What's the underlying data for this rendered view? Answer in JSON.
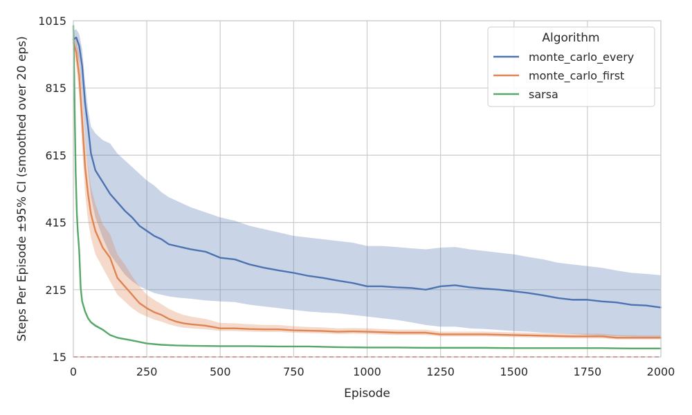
{
  "chart_data": {
    "type": "line",
    "title": "",
    "xlabel": "Episode",
    "ylabel": "Steps Per Episode ±95% CI (smoothed over 20 eps)",
    "xlim": [
      0,
      2000
    ],
    "ylim": [
      15,
      1015
    ],
    "xticks": [
      0,
      250,
      500,
      750,
      1000,
      1250,
      1500,
      1750,
      2000
    ],
    "yticks": [
      15,
      215,
      415,
      615,
      815,
      1015
    ],
    "grid": true,
    "legend": {
      "title": "Algorithm",
      "position": "top-right"
    },
    "reference_line": {
      "y": 15,
      "color": "#e6201f",
      "style": "dashed"
    },
    "series": [
      {
        "name": "monte_carlo_every",
        "color": "#4c72b0",
        "x": [
          0,
          10,
          20,
          30,
          40,
          50,
          60,
          75,
          100,
          125,
          150,
          175,
          200,
          225,
          250,
          275,
          300,
          325,
          350,
          375,
          400,
          450,
          500,
          550,
          600,
          650,
          700,
          750,
          800,
          850,
          900,
          950,
          1000,
          1050,
          1100,
          1150,
          1200,
          1250,
          1300,
          1350,
          1400,
          1450,
          1500,
          1550,
          1600,
          1650,
          1700,
          1750,
          1800,
          1850,
          1900,
          1950,
          2000
        ],
        "y": [
          960,
          965,
          940,
          880,
          770,
          700,
          620,
          570,
          535,
          500,
          475,
          450,
          430,
          405,
          390,
          375,
          365,
          350,
          345,
          340,
          335,
          328,
          310,
          305,
          290,
          280,
          272,
          265,
          256,
          250,
          242,
          235,
          225,
          225,
          222,
          220,
          215,
          225,
          228,
          222,
          218,
          215,
          210,
          205,
          198,
          190,
          185,
          185,
          180,
          177,
          170,
          168,
          162
        ],
        "lower": [
          940,
          930,
          890,
          800,
          660,
          570,
          490,
          430,
          370,
          320,
          290,
          260,
          240,
          225,
          215,
          205,
          200,
          195,
          192,
          190,
          188,
          183,
          180,
          178,
          170,
          165,
          160,
          155,
          150,
          147,
          145,
          140,
          135,
          130,
          125,
          118,
          110,
          105,
          105,
          100,
          98,
          95,
          92,
          90,
          87,
          85,
          83,
          80,
          78,
          76,
          75,
          74,
          72
        ],
        "upper": [
          985,
          990,
          975,
          930,
          830,
          750,
          700,
          680,
          660,
          650,
          620,
          600,
          580,
          560,
          540,
          525,
          505,
          490,
          480,
          470,
          460,
          445,
          430,
          420,
          405,
          395,
          385,
          375,
          370,
          365,
          360,
          355,
          345,
          345,
          342,
          338,
          335,
          340,
          342,
          335,
          330,
          325,
          320,
          312,
          305,
          295,
          290,
          285,
          280,
          272,
          265,
          262,
          258
        ]
      },
      {
        "name": "monte_carlo_first",
        "color": "#dd8452",
        "x": [
          0,
          10,
          20,
          30,
          40,
          50,
          60,
          75,
          100,
          125,
          150,
          175,
          200,
          225,
          250,
          275,
          300,
          325,
          350,
          375,
          400,
          450,
          500,
          550,
          600,
          650,
          700,
          750,
          800,
          850,
          900,
          950,
          1000,
          1100,
          1200,
          1250,
          1300,
          1400,
          1500,
          1600,
          1700,
          1800,
          1850,
          1900,
          1950,
          2000
        ],
        "y": [
          950,
          920,
          850,
          720,
          580,
          500,
          440,
          390,
          340,
          310,
          250,
          225,
          200,
          175,
          160,
          148,
          140,
          128,
          120,
          115,
          112,
          108,
          100,
          100,
          98,
          97,
          97,
          94,
          93,
          92,
          90,
          91,
          90,
          87,
          87,
          82,
          82,
          82,
          80,
          78,
          76,
          76,
          72,
          72,
          72,
          72
        ],
        "lower": [
          930,
          880,
          790,
          640,
          500,
          420,
          370,
          320,
          280,
          240,
          200,
          180,
          160,
          145,
          135,
          126,
          120,
          112,
          106,
          102,
          100,
          97,
          92,
          92,
          90,
          89,
          89,
          87,
          86,
          85,
          83,
          84,
          83,
          80,
          80,
          76,
          76,
          76,
          74,
          72,
          70,
          70,
          67,
          67,
          67,
          67
        ],
        "upper": [
          975,
          960,
          910,
          800,
          660,
          580,
          520,
          470,
          410,
          380,
          320,
          290,
          255,
          225,
          200,
          185,
          172,
          158,
          148,
          140,
          135,
          128,
          116,
          115,
          112,
          110,
          110,
          106,
          104,
          103,
          100,
          101,
          100,
          96,
          96,
          90,
          90,
          90,
          88,
          86,
          84,
          84,
          80,
          80,
          79,
          79
        ]
      },
      {
        "name": "sarsa",
        "color": "#55a868",
        "x": [
          0,
          3,
          5,
          8,
          12,
          15,
          20,
          25,
          30,
          40,
          50,
          60,
          75,
          100,
          125,
          150,
          200,
          250,
          300,
          350,
          400,
          500,
          600,
          700,
          800,
          900,
          1000,
          1100,
          1200,
          1300,
          1400,
          1500,
          1600,
          1700,
          1800,
          1900,
          2000
        ],
        "y": [
          1000,
          850,
          720,
          560,
          440,
          390,
          330,
          220,
          180,
          150,
          130,
          118,
          108,
          96,
          80,
          72,
          64,
          55,
          51,
          49,
          48,
          47,
          47,
          46,
          46,
          44,
          43,
          43,
          42,
          42,
          42,
          41,
          41,
          41,
          41,
          40,
          40
        ],
        "lower": [
          995,
          830,
          700,
          540,
          425,
          378,
          320,
          212,
          174,
          145,
          126,
          114,
          104,
          93,
          78,
          70,
          62,
          53,
          49,
          47,
          46,
          45,
          45,
          44,
          44,
          42,
          41,
          41,
          40,
          40,
          40,
          39,
          39,
          39,
          39,
          38,
          38
        ],
        "upper": [
          1005,
          870,
          740,
          580,
          455,
          402,
          340,
          228,
          186,
          155,
          134,
          122,
          112,
          99,
          82,
          74,
          66,
          57,
          53,
          51,
          50,
          49,
          49,
          48,
          48,
          46,
          45,
          45,
          44,
          44,
          44,
          43,
          43,
          43,
          43,
          42,
          42
        ]
      }
    ]
  }
}
